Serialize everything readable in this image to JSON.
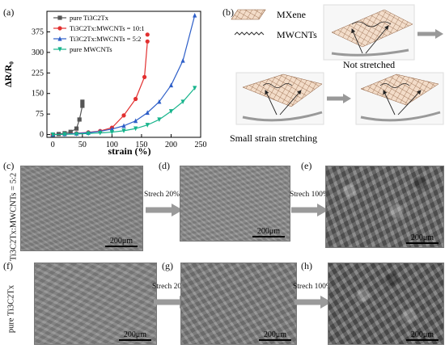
{
  "panels": {
    "a": "(a)",
    "b": "(b)",
    "c": "(c)",
    "d": "(d)",
    "e": "(e)",
    "f": "(f)",
    "g": "(g)",
    "h": "(h)"
  },
  "chart_data": {
    "type": "line",
    "xlabel": "strain (%)",
    "ylabel": "ΔR/R₀",
    "xlim": [
      -10,
      250
    ],
    "ylim": [
      -10,
      450
    ],
    "xticks": [
      0,
      50,
      100,
      150,
      200,
      250
    ],
    "yticks": [
      0,
      75,
      150,
      225,
      300,
      375
    ],
    "legend_position": "top-left",
    "series": [
      {
        "name": "pure Ti3C2Tx",
        "color": "#555555",
        "marker": "square",
        "x": [
          0,
          10,
          20,
          30,
          40,
          45,
          50
        ],
        "y": [
          0,
          2,
          5,
          10,
          22,
          55,
          105
        ]
      },
      {
        "name": "Ti3C2Tx:MWCNTs = 10:1",
        "color": "#e23030",
        "marker": "circle",
        "x": [
          0,
          20,
          40,
          60,
          80,
          100,
          120,
          140,
          155,
          160
        ],
        "y": [
          0,
          2,
          5,
          8,
          13,
          25,
          70,
          130,
          210,
          340
        ]
      },
      {
        "name": "Ti3C2Tx:MWCNTs = 5:2",
        "color": "#2e5fc8",
        "marker": "triangle",
        "x": [
          0,
          20,
          40,
          60,
          80,
          100,
          120,
          140,
          160,
          180,
          200,
          220,
          240
        ],
        "y": [
          0,
          2,
          4,
          7,
          12,
          20,
          32,
          50,
          80,
          120,
          180,
          270,
          435
        ]
      },
      {
        "name": "pure MWCNTs",
        "color": "#17b48c",
        "marker": "triangle-down",
        "x": [
          0,
          20,
          40,
          60,
          80,
          100,
          120,
          140,
          160,
          180,
          200,
          220,
          240
        ],
        "y": [
          0,
          1,
          2,
          4,
          6,
          9,
          14,
          22,
          35,
          55,
          85,
          120,
          170
        ]
      }
    ],
    "extra_points": [
      {
        "series": "pure Ti3C2Tx",
        "x": 50,
        "y": 120
      },
      {
        "series": "Ti3C2Tx:MWCNTs = 10:1",
        "x": 160,
        "y": 365
      }
    ]
  },
  "schematic": {
    "legend_mxene": "MXene",
    "legend_mwcnt": "MWCNTs",
    "caption_not_stretched": "Not stretched",
    "caption_small_strain": "Small strain stretching"
  },
  "sem": {
    "row1_label": "Ti3C2Tx:MWCNTs = 5:2",
    "row2_label": "pure Ti3C2Tx",
    "arrow1": "Strech 20%",
    "arrow2": "Strech 100%",
    "scale": "200μm"
  }
}
